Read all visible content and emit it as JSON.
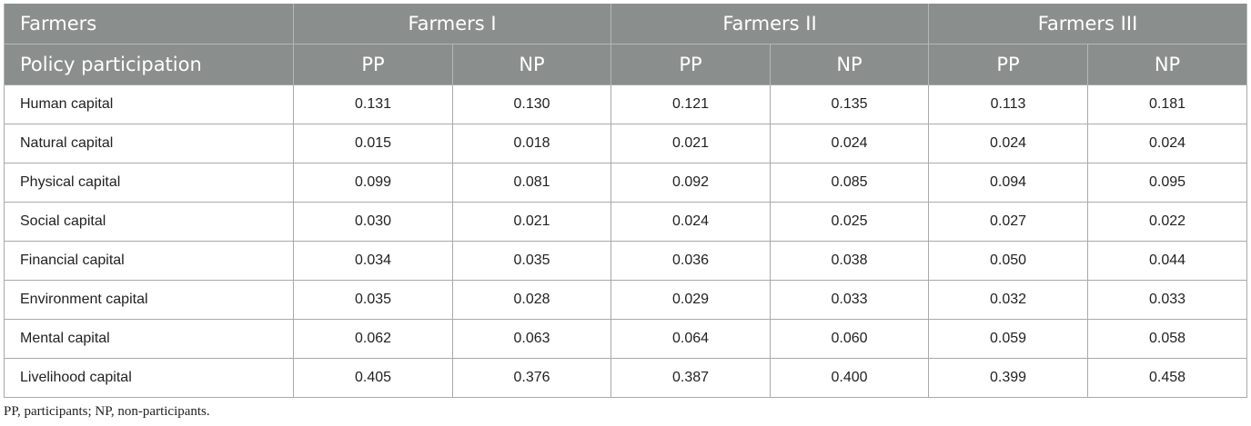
{
  "table": {
    "header": {
      "group_row_label": "Farmers",
      "groups": [
        "Farmers I",
        "Farmers II",
        "Farmers III"
      ],
      "sub_row_label": "Policy participation",
      "subheaders": [
        "PP",
        "NP",
        "PP",
        "NP",
        "PP",
        "NP"
      ]
    },
    "rows": [
      {
        "label": "Human capital",
        "values": [
          "0.131",
          "0.130",
          "0.121",
          "0.135",
          "0.113",
          "0.181"
        ]
      },
      {
        "label": "Natural capital",
        "values": [
          "0.015",
          "0.018",
          "0.021",
          "0.024",
          "0.024",
          "0.024"
        ]
      },
      {
        "label": "Physical capital",
        "values": [
          "0.099",
          "0.081",
          "0.092",
          "0.085",
          "0.094",
          "0.095"
        ]
      },
      {
        "label": "Social capital",
        "values": [
          "0.030",
          "0.021",
          "0.024",
          "0.025",
          "0.027",
          "0.022"
        ]
      },
      {
        "label": "Financial capital",
        "values": [
          "0.034",
          "0.035",
          "0.036",
          "0.038",
          "0.050",
          "0.044"
        ]
      },
      {
        "label": "Environment capital",
        "values": [
          "0.035",
          "0.028",
          "0.029",
          "0.033",
          "0.032",
          "0.033"
        ]
      },
      {
        "label": "Mental capital",
        "values": [
          "0.062",
          "0.063",
          "0.064",
          "0.060",
          "0.059",
          "0.058"
        ]
      },
      {
        "label": "Livelihood capital",
        "values": [
          "0.405",
          "0.376",
          "0.387",
          "0.400",
          "0.399",
          "0.458"
        ]
      }
    ]
  },
  "footnote": "PP, participants; NP, non-participants.",
  "colors": {
    "header_bg": "#8a8f8e",
    "header_text": "#ffffff",
    "grid": "#a9a9a9"
  }
}
